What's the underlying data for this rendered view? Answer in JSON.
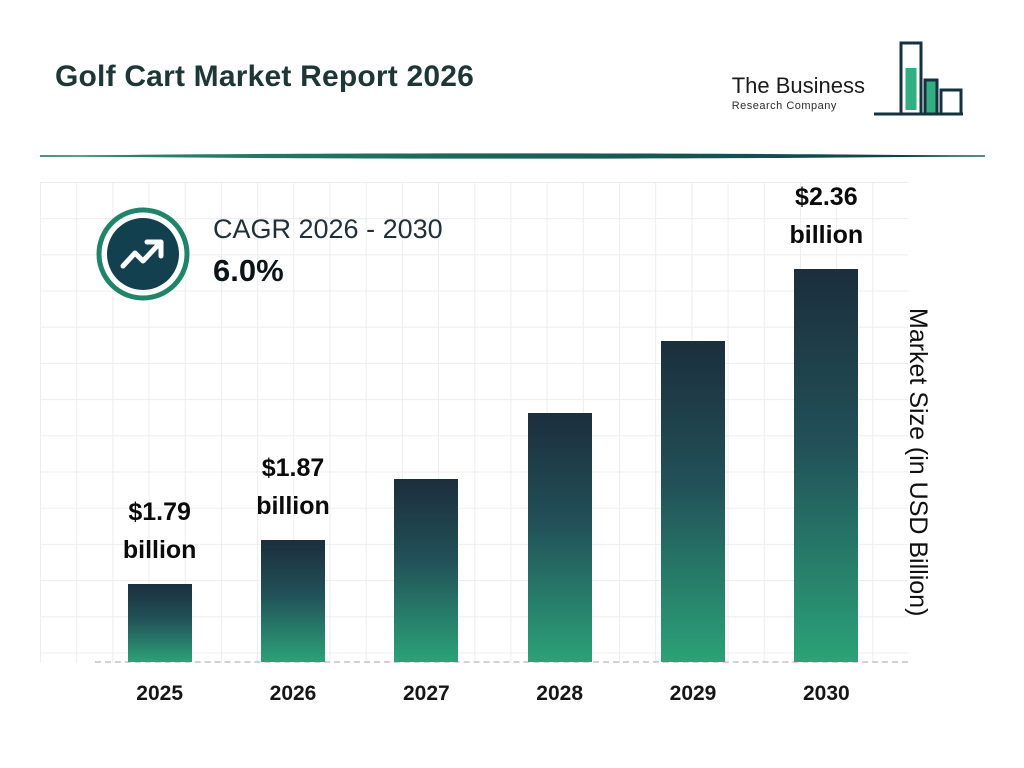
{
  "header": {
    "title": "Golf Cart Market Report 2026",
    "logo": {
      "line1": "The Business",
      "line2": "Research Company"
    }
  },
  "cagr": {
    "label": "CAGR 2026 - 2030",
    "value": "6.0%"
  },
  "brand_colors": {
    "dark_teal": "#12404e",
    "green": "#2fa87b",
    "divider_teal": "#1a6a58",
    "ring_green": "#1f8468"
  },
  "chart_data": {
    "type": "bar",
    "title": "Golf Cart Market Report 2026",
    "categories": [
      "2025",
      "2026",
      "2027",
      "2028",
      "2029",
      "2030"
    ],
    "values": [
      1.79,
      1.87,
      1.98,
      2.1,
      2.23,
      2.36
    ],
    "bar_labels": [
      [
        "$1.79",
        "billion"
      ],
      [
        "$1.87",
        "billion"
      ],
      null,
      null,
      null,
      [
        "$2.36",
        "billion"
      ]
    ],
    "xlabel": "",
    "ylabel": "Market Size (in USD Billion)",
    "ylim": [
      1.65,
      2.52
    ],
    "grid": true,
    "legend": false,
    "bar_gradient": [
      "#1b2e3c",
      "#2ba277"
    ]
  }
}
